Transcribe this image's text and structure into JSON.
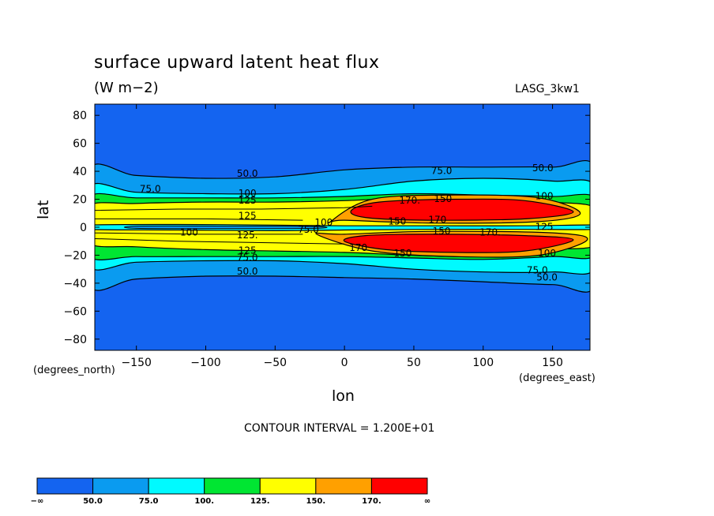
{
  "chart_data": {
    "type": "heatmap",
    "title": "surface upward latent heat flux",
    "subtitle": "(W m−2)",
    "model_label": "LASG_3kw1",
    "xlabel": "lon",
    "ylabel": "lat",
    "x_units_label": "(degrees_east)",
    "y_units_label": "(degrees_north)",
    "xlim": [
      -180,
      177
    ],
    "ylim": [
      -88,
      88
    ],
    "x_ticks": [
      -150,
      -100,
      -50,
      0,
      50,
      100,
      150
    ],
    "x_tick_labels": [
      "−150",
      "−100",
      "−50",
      "0",
      "50",
      "100",
      "150"
    ],
    "y_ticks": [
      80,
      60,
      40,
      20,
      0,
      -20,
      -40,
      -60,
      -80
    ],
    "y_tick_labels": [
      "80",
      "60",
      "40",
      "20",
      "0",
      "−20",
      "−40",
      "−60",
      "−80"
    ],
    "contour_interval": "CONTOUR INTERVAL = 1.200E+01",
    "levels": [
      "-∞",
      "50.0",
      "75.0",
      "100.",
      "125.",
      "150.",
      "170.",
      "∞"
    ],
    "colors": [
      "#1464f0",
      "#0a9bf0",
      "#00faff",
      "#00e632",
      "#ffff00",
      "#ffa000",
      "#ff0000"
    ],
    "contour_labels": [
      {
        "text": "50.0",
        "lon": -70,
        "lat": 38
      },
      {
        "text": "75.0",
        "lon": 70,
        "lat": 40
      },
      {
        "text": "50.0",
        "lon": 143,
        "lat": 42
      },
      {
        "text": "75.0",
        "lon": -140,
        "lat": 27
      },
      {
        "text": "100",
        "lon": -70,
        "lat": 24
      },
      {
        "text": "125",
        "lon": -70,
        "lat": 19
      },
      {
        "text": "170.",
        "lon": 47,
        "lat": 19
      },
      {
        "text": "150",
        "lon": 71,
        "lat": 20
      },
      {
        "text": "100",
        "lon": 144,
        "lat": 22
      },
      {
        "text": "125",
        "lon": -70,
        "lat": 8
      },
      {
        "text": "100",
        "lon": -15,
        "lat": 3
      },
      {
        "text": "150",
        "lon": 38,
        "lat": 4
      },
      {
        "text": "170",
        "lon": 67,
        "lat": 5
      },
      {
        "text": "125",
        "lon": 144,
        "lat": 0
      },
      {
        "text": "100",
        "lon": -112,
        "lat": -4
      },
      {
        "text": "75.0",
        "lon": -26,
        "lat": -2
      },
      {
        "text": "150",
        "lon": 70,
        "lat": -3
      },
      {
        "text": "170.",
        "lon": 105,
        "lat": -4
      },
      {
        "text": "125.",
        "lon": -70,
        "lat": -6
      },
      {
        "text": "170",
        "lon": 10,
        "lat": -15
      },
      {
        "text": "150",
        "lon": 42,
        "lat": -19
      },
      {
        "text": "125",
        "lon": -70,
        "lat": -17
      },
      {
        "text": "75.0",
        "lon": -70,
        "lat": -22
      },
      {
        "text": "100",
        "lon": 146,
        "lat": -19
      },
      {
        "text": "75.0",
        "lon": 139,
        "lat": -31
      },
      {
        "text": "50.0",
        "lon": 146,
        "lat": -36
      },
      {
        "text": "50.0",
        "lon": -70,
        "lat": -32
      }
    ]
  },
  "legend": {
    "labels": [
      "−∞",
      "50.0",
      "75.0",
      "100.",
      "125.",
      "150.",
      "170.",
      "∞"
    ]
  }
}
